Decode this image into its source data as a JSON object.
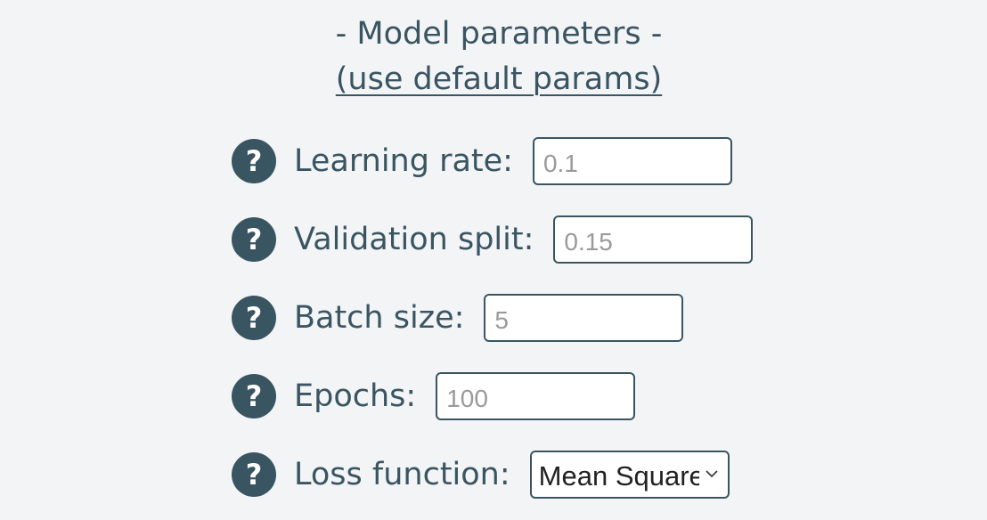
{
  "header": {
    "title": "- Model parameters -",
    "default_link": "(use default params)"
  },
  "params": {
    "learning_rate": {
      "label": "Learning rate:",
      "placeholder": "0.1",
      "value": ""
    },
    "validation_split": {
      "label": "Validation split:",
      "placeholder": "0.15",
      "value": ""
    },
    "batch_size": {
      "label": "Batch size:",
      "placeholder": "5",
      "value": ""
    },
    "epochs": {
      "label": "Epochs:",
      "placeholder": "100",
      "value": ""
    },
    "loss_function": {
      "label": "Loss function:",
      "selected": "Mean Squared Error"
    }
  },
  "icons": {
    "help": "help-icon",
    "help_glyph": "?",
    "chevron": "chevron-down-icon"
  },
  "colors": {
    "primary": "#3a5562",
    "background": "#f3f4f6",
    "placeholder": "#9a9a9a"
  }
}
